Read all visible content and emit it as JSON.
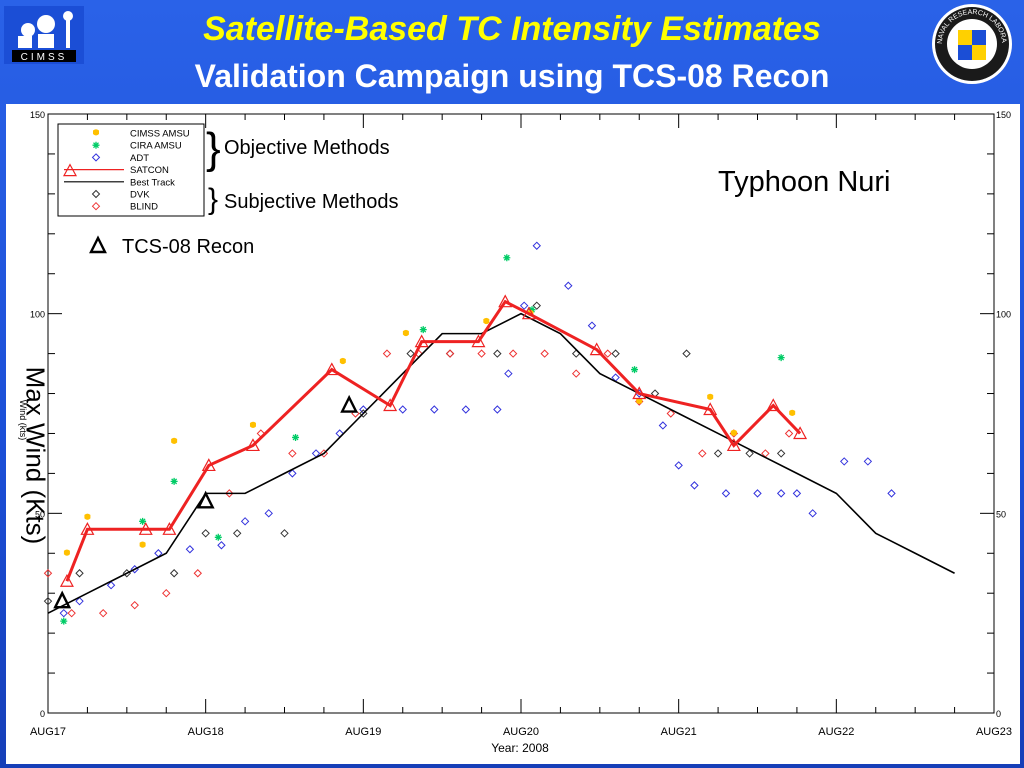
{
  "header": {
    "logo_left_text": "CIMSS",
    "title_line1": "Satellite-Based TC Intensity Estimates",
    "title_line2": "Validation Campaign using TCS-08 Recon",
    "logo_right_text": "NAVAL RESEARCH LABORATORY"
  },
  "annotations": {
    "objective": "Objective Methods",
    "subjective": "Subjective Methods",
    "storm": "Typhoon Nuri",
    "recon": "TCS-08 Recon",
    "ylabel_big": "Max Wind (Kts)"
  },
  "colors": {
    "cimss_amsu": "#ffc000",
    "cira_amsu": "#00cc66",
    "adt": "#3333dd",
    "satcon": "#ee2222",
    "best_track": "#000000",
    "dvk": "#333333",
    "blind": "#ee3333",
    "recon": "#000000"
  },
  "chart_data": {
    "type": "scatter",
    "xlabel": "Year: 2008",
    "ylabel": "Wind (kts)",
    "x_unit": "days since AUG17 00Z",
    "xlim": [
      0,
      6
    ],
    "ylim": [
      0,
      150
    ],
    "x_ticks": [
      "AUG17",
      "AUG18",
      "AUG19",
      "AUG20",
      "AUG21",
      "AUG22",
      "AUG23"
    ],
    "y_ticks": [
      "0",
      "50",
      "100",
      "150"
    ],
    "legend_position": "top-left",
    "legend": [
      "CIMSS AMSU",
      "CIRA AMSU",
      "ADT",
      "SATCON",
      "Best Track",
      "DVK",
      "BLIND"
    ],
    "series": [
      {
        "name": "Best Track",
        "kind": "line",
        "x": [
          0,
          0.25,
          0.5,
          0.75,
          1.0,
          1.25,
          1.5,
          1.75,
          2.0,
          2.25,
          2.5,
          2.75,
          3.0,
          3.25,
          3.5,
          3.75,
          4.0,
          4.25,
          4.5,
          4.75,
          5.0,
          5.25,
          5.5,
          5.75
        ],
        "y": [
          25,
          30,
          35,
          40,
          55,
          55,
          60,
          65,
          75,
          85,
          95,
          95,
          100,
          95,
          85,
          80,
          75,
          70,
          65,
          60,
          55,
          45,
          40,
          35
        ]
      },
      {
        "name": "SATCON",
        "kind": "line-marker",
        "x": [
          0.12,
          0.25,
          0.62,
          0.77,
          1.02,
          1.3,
          1.8,
          2.17,
          2.37,
          2.73,
          2.9,
          3.05,
          3.48,
          3.75,
          4.2,
          4.35,
          4.6,
          4.77
        ],
        "y": [
          33,
          46,
          46,
          46,
          62,
          67,
          86,
          77,
          93,
          93,
          103,
          100,
          91,
          80,
          76,
          67,
          77,
          70
        ]
      },
      {
        "name": "CIMSS AMSU",
        "kind": "marker",
        "x": [
          0.12,
          0.25,
          0.6,
          0.8,
          1.3,
          1.87,
          2.27,
          2.78,
          3.06,
          3.75,
          4.2,
          4.35,
          4.72
        ],
        "y": [
          40,
          49,
          42,
          68,
          72,
          88,
          95,
          98,
          100,
          78,
          79,
          70,
          75
        ]
      },
      {
        "name": "CIRA AMSU",
        "kind": "marker",
        "x": [
          0.1,
          0.6,
          0.8,
          1.08,
          1.57,
          2.38,
          2.91,
          3.07,
          3.72,
          4.65
        ],
        "y": [
          23,
          48,
          58,
          44,
          69,
          96,
          114,
          101,
          86,
          89
        ]
      },
      {
        "name": "ADT",
        "kind": "marker",
        "x": [
          0.1,
          0.2,
          0.4,
          0.55,
          0.7,
          0.9,
          1.1,
          1.25,
          1.4,
          1.55,
          1.7,
          1.85,
          2.0,
          2.25,
          2.45,
          2.65,
          2.85,
          2.92,
          3.02,
          3.1,
          3.3,
          3.45,
          3.6,
          3.75,
          3.9,
          4.0,
          4.1,
          4.3,
          4.5,
          4.65,
          4.75,
          4.85,
          5.05,
          5.2,
          5.35
        ],
        "y": [
          25,
          28,
          32,
          36,
          40,
          41,
          42,
          48,
          50,
          60,
          65,
          70,
          76,
          76,
          76,
          76,
          76,
          85,
          102,
          117,
          107,
          97,
          84,
          80,
          72,
          62,
          57,
          55,
          55,
          55,
          55,
          50,
          63,
          63,
          55
        ]
      },
      {
        "name": "DVK",
        "kind": "marker",
        "x": [
          0.0,
          0.2,
          0.5,
          0.8,
          1.0,
          1.2,
          1.5,
          2.0,
          2.3,
          2.55,
          2.85,
          3.1,
          3.35,
          3.6,
          3.85,
          4.05,
          4.25,
          4.45,
          4.65
        ],
        "y": [
          28,
          35,
          35,
          35,
          45,
          45,
          45,
          75,
          90,
          90,
          90,
          102,
          90,
          90,
          80,
          90,
          65,
          65,
          65
        ]
      },
      {
        "name": "BLIND",
        "kind": "marker",
        "x": [
          0.0,
          0.15,
          0.35,
          0.55,
          0.75,
          0.95,
          1.15,
          1.35,
          1.55,
          1.75,
          1.95,
          2.15,
          2.35,
          2.55,
          2.75,
          2.95,
          3.15,
          3.35,
          3.55,
          3.75,
          3.95,
          4.15,
          4.35,
          4.55,
          4.7
        ],
        "y": [
          35,
          25,
          25,
          27,
          30,
          35,
          55,
          70,
          65,
          65,
          75,
          90,
          90,
          90,
          90,
          90,
          90,
          85,
          90,
          78,
          75,
          65,
          70,
          65,
          70
        ]
      },
      {
        "name": "TCS-08 Recon",
        "kind": "marker",
        "x": [
          0.09,
          1.0,
          1.91
        ],
        "y": [
          28,
          53,
          77
        ]
      }
    ]
  }
}
